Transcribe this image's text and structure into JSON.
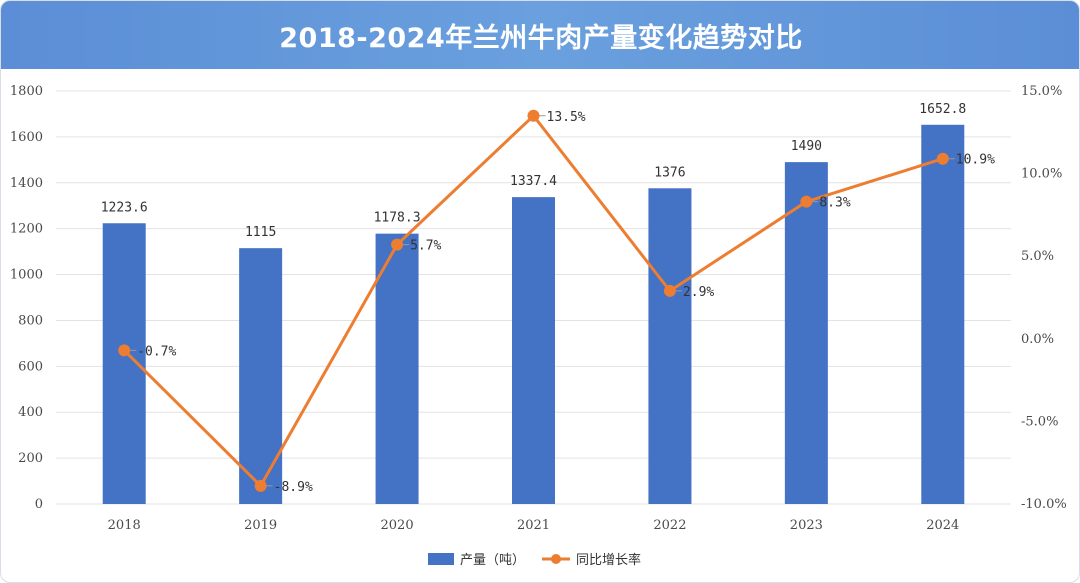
{
  "title": "2018-2024年兰州牛肉产量变化趋势对比",
  "colors": {
    "bar": "#4472c4",
    "line": "#ed7d31",
    "title_bg": "#5b8ed6",
    "grid": "#e3e3e3"
  },
  "chart_data": {
    "type": "bar",
    "title": "2018-2024年兰州牛肉产量变化趋势对比",
    "categories": [
      "2018",
      "2019",
      "2020",
      "2021",
      "2022",
      "2023",
      "2024"
    ],
    "series": [
      {
        "name": "产量（吨）",
        "type": "bar",
        "axis": "left",
        "values": [
          1223.6,
          1115,
          1178.3,
          1337.4,
          1376,
          1490,
          1652.8
        ],
        "labels": [
          "1223.6",
          "1115",
          "1178.3",
          "1337.4",
          "1376",
          "1490",
          "1652.8"
        ]
      },
      {
        "name": "同比增长率",
        "type": "line",
        "axis": "right",
        "values": [
          -0.7,
          -8.9,
          5.7,
          13.5,
          2.9,
          8.3,
          10.9
        ],
        "labels": [
          "-0.7%",
          "-8.9%",
          "5.7%",
          "13.5%",
          "2.9%",
          "8.3%",
          "10.9%"
        ]
      }
    ],
    "y_left": {
      "min": 0,
      "max": 1800,
      "step": 200,
      "ticks": [
        "0",
        "200",
        "400",
        "600",
        "800",
        "1000",
        "1200",
        "1400",
        "1600",
        "1800"
      ]
    },
    "y_right": {
      "min": -10,
      "max": 15,
      "step": 5,
      "ticks": [
        "-10.0%",
        "-5.0%",
        "0.0%",
        "5.0%",
        "10.0%",
        "15.0%"
      ]
    },
    "grid": true,
    "legend_position": "bottom-center"
  }
}
